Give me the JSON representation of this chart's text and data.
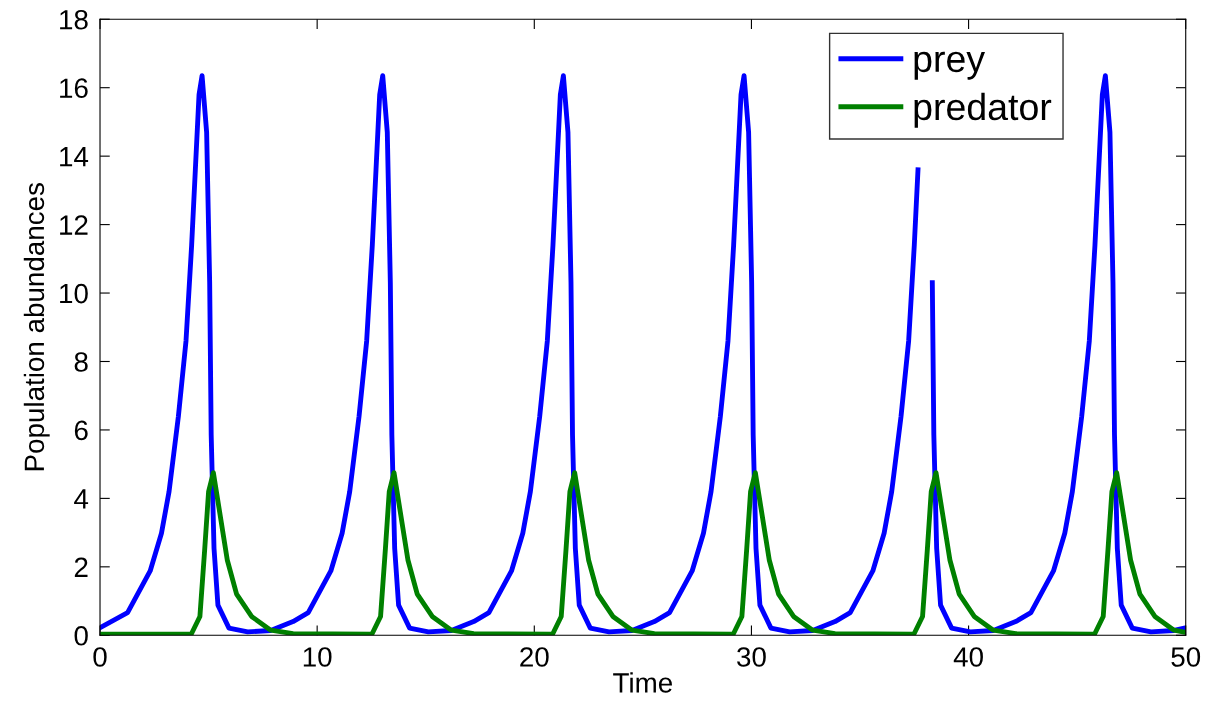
{
  "chart_data": {
    "type": "line",
    "xlabel": "Time",
    "ylabel": "Population abundances",
    "xlim": [
      0,
      50
    ],
    "xticks": [
      0,
      10,
      20,
      30,
      40,
      50
    ],
    "ylim": [
      0,
      18
    ],
    "yticks": [
      0,
      2,
      4,
      6,
      8,
      10,
      12,
      14,
      16,
      18
    ],
    "grid": false,
    "legend": "top right",
    "marker": "none",
    "line_style": "solid",
    "series": [
      {
        "name": "prey",
        "color": "#0000ff",
        "x": [
          0,
          1.27,
          2.31,
          2.83,
          3.18,
          3.61,
          3.96,
          4.22,
          4.39,
          4.56,
          4.7,
          4.91,
          5.05,
          5.12,
          5.25,
          5.43,
          5.94,
          6.8,
          7.86,
          8.89,
          9.59,
          10.63,
          11.15,
          11.5,
          11.93,
          12.28,
          12.54,
          12.71,
          12.88,
          13.02,
          13.23,
          13.37,
          13.44,
          13.57,
          13.75,
          14.26,
          15.12,
          16.18,
          17.21,
          17.91,
          18.95,
          19.47,
          19.82,
          20.25,
          20.6,
          20.86,
          21.03,
          21.2,
          21.34,
          21.55,
          21.69,
          21.76,
          21.89,
          22.07,
          22.58,
          23.44,
          24.5,
          25.53,
          26.23,
          27.27,
          27.79,
          28.14,
          28.57,
          28.92,
          29.18,
          29.35,
          29.52,
          29.66,
          29.87,
          30.01,
          30.08,
          30.21,
          30.39,
          30.9,
          31.76,
          32.82,
          33.85,
          34.55,
          35.59,
          36.11,
          36.46,
          36.89,
          37.24,
          37.5,
          37.67,
          37.84,
          37.98,
          38.19,
          38.33,
          38.4,
          38.53,
          38.71,
          39.22,
          40.08,
          41.14,
          42.17,
          42.87,
          43.91,
          44.43,
          44.78,
          45.21,
          45.56,
          45.82,
          45.99,
          46.16,
          46.3,
          46.51,
          46.65,
          46.72,
          46.85,
          47.03,
          47.54,
          48.4,
          49.46,
          50
        ],
        "values": [
          0.22,
          0.66,
          1.88,
          2.98,
          4.2,
          6.4,
          8.6,
          11.4,
          13.6,
          15.8,
          16.35,
          14.7,
          10.3,
          5.85,
          2.54,
          0.88,
          0.21,
          0.1,
          0.14,
          0.4,
          0.66,
          1.88,
          2.98,
          4.2,
          6.4,
          8.6,
          11.4,
          13.6,
          15.8,
          16.35,
          14.7,
          10.3,
          5.85,
          2.54,
          0.88,
          0.21,
          0.1,
          0.14,
          0.4,
          0.66,
          1.88,
          2.98,
          4.2,
          6.4,
          8.6,
          11.4,
          13.6,
          15.8,
          16.35,
          14.7,
          10.3,
          5.85,
          2.54,
          0.88,
          0.21,
          0.1,
          0.14,
          0.4,
          0.66,
          1.88,
          2.98,
          4.2,
          6.4,
          8.6,
          11.4,
          13.6,
          15.8,
          16.35,
          14.7,
          10.3,
          5.85,
          2.54,
          0.88,
          0.21,
          0.1,
          0.14,
          0.4,
          0.66,
          1.88,
          2.98,
          4.2,
          6.4,
          8.6,
          11.4,
          13.6,
          null,
          null,
          null,
          10.3,
          5.85,
          2.54,
          0.88,
          0.21,
          0.1,
          0.14,
          0.4,
          0.66,
          1.88,
          2.98,
          4.2,
          6.4,
          8.6,
          11.4,
          13.6,
          15.8,
          16.35,
          14.7,
          10.3,
          5.85,
          2.54,
          0.88,
          0.21,
          0.1,
          0.14,
          0.22
        ]
      },
      {
        "name": "predator",
        "color": "#008000",
        "x": [
          0,
          4.2,
          4.6,
          4.82,
          5.0,
          5.22,
          5.51,
          5.86,
          6.29,
          6.98,
          7.86,
          8.89,
          12.52,
          12.92,
          13.14,
          13.32,
          13.54,
          13.83,
          14.18,
          14.61,
          15.3,
          16.18,
          17.21,
          20.84,
          21.24,
          21.46,
          21.64,
          21.86,
          22.15,
          22.5,
          22.93,
          23.62,
          24.5,
          25.53,
          29.16,
          29.56,
          29.78,
          29.96,
          30.18,
          30.47,
          30.82,
          31.25,
          31.94,
          32.82,
          33.85,
          37.48,
          37.88,
          38.1,
          38.28,
          38.5,
          38.79,
          39.14,
          39.57,
          40.26,
          41.14,
          42.17,
          45.8,
          46.2,
          46.42,
          46.6,
          46.82,
          47.11,
          47.46,
          47.89,
          48.58,
          49.46,
          50
        ],
        "values": [
          0.03,
          0.03,
          0.55,
          2.5,
          4.2,
          4.75,
          3.6,
          2.2,
          1.2,
          0.55,
          0.15,
          0.05,
          0.03,
          0.55,
          2.5,
          4.2,
          4.75,
          3.6,
          2.2,
          1.2,
          0.55,
          0.15,
          0.05,
          0.03,
          0.55,
          2.5,
          4.2,
          4.75,
          3.6,
          2.2,
          1.2,
          0.55,
          0.15,
          0.05,
          0.03,
          0.55,
          2.5,
          4.2,
          4.75,
          3.6,
          2.2,
          1.2,
          0.55,
          0.15,
          0.05,
          0.03,
          0.55,
          2.5,
          4.2,
          4.75,
          3.6,
          2.2,
          1.2,
          0.55,
          0.15,
          0.05,
          0.03,
          0.55,
          2.5,
          4.2,
          4.75,
          3.6,
          2.2,
          1.2,
          0.55,
          0.15,
          0.08
        ]
      }
    ]
  }
}
